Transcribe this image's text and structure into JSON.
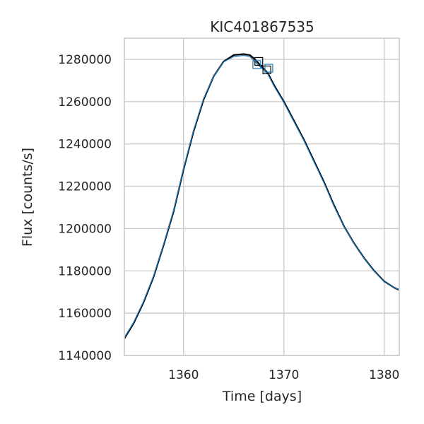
{
  "chart_data": {
    "type": "line",
    "title": "KIC401867535",
    "xlabel": "Time [days]",
    "ylabel": "Flux [counts/s]",
    "xlim": [
      1354.1,
      1381.5
    ],
    "ylim": [
      1140000,
      1290000
    ],
    "x_ticks": [
      1360,
      1370,
      1380
    ],
    "y_ticks": [
      1140000,
      1160000,
      1180000,
      1200000,
      1220000,
      1240000,
      1260000,
      1280000
    ],
    "grid": true,
    "legend": "none",
    "series": [
      {
        "color": "#000000",
        "x": [
          1354.1,
          1355,
          1356,
          1357,
          1358,
          1359,
          1360,
          1361,
          1362,
          1363,
          1364,
          1365,
          1366,
          1366.6,
          1367,
          1367.4,
          1368,
          1368.4,
          1369,
          1370,
          1371,
          1372,
          1373,
          1374,
          1375,
          1376,
          1377,
          1378,
          1379,
          1380,
          1381,
          1381.5
        ],
        "y": [
          1148000,
          1155000,
          1165000,
          1177000,
          1192000,
          1208000,
          1228000,
          1246000,
          1261000,
          1272000,
          1279000,
          1282000,
          1282500,
          1282000,
          1280500,
          1278500,
          1275500,
          1273500,
          1268000,
          1260000,
          1251000,
          1242000,
          1232000,
          1222000,
          1211000,
          1201000,
          1193000,
          1186000,
          1180000,
          1175000,
          1172000,
          1171000
        ]
      },
      {
        "color": "#1f77b4",
        "x": [
          1354.1,
          1355,
          1356,
          1357,
          1358,
          1359,
          1360,
          1361,
          1362,
          1363,
          1364,
          1365,
          1366,
          1366.6,
          1367,
          1367.4,
          1368,
          1368.4,
          1369,
          1370,
          1371,
          1372,
          1373,
          1374,
          1375,
          1376,
          1377,
          1378,
          1379,
          1380,
          1381,
          1381.5
        ],
        "y": [
          1148500,
          1155500,
          1165500,
          1177500,
          1192500,
          1208500,
          1228500,
          1246500,
          1261500,
          1272000,
          1278800,
          1281300,
          1281800,
          1281300,
          1279500,
          1277500,
          1275000,
          1273000,
          1267500,
          1259500,
          1250500,
          1241500,
          1231500,
          1221500,
          1210500,
          1200800,
          1192800,
          1185800,
          1179800,
          1174800,
          1172000,
          1171200
        ]
      }
    ],
    "markers": [
      {
        "color": "#000000",
        "shape": "open-square",
        "x": 1367.5,
        "y": 1279000
      },
      {
        "color": "#1f77b4",
        "shape": "open-square",
        "x": 1367.3,
        "y": 1277500
      },
      {
        "color": "#000000",
        "shape": "open-square",
        "x": 1368.3,
        "y": 1275000
      },
      {
        "color": "#1f77b4",
        "shape": "open-square",
        "x": 1368.5,
        "y": 1275800
      }
    ]
  }
}
